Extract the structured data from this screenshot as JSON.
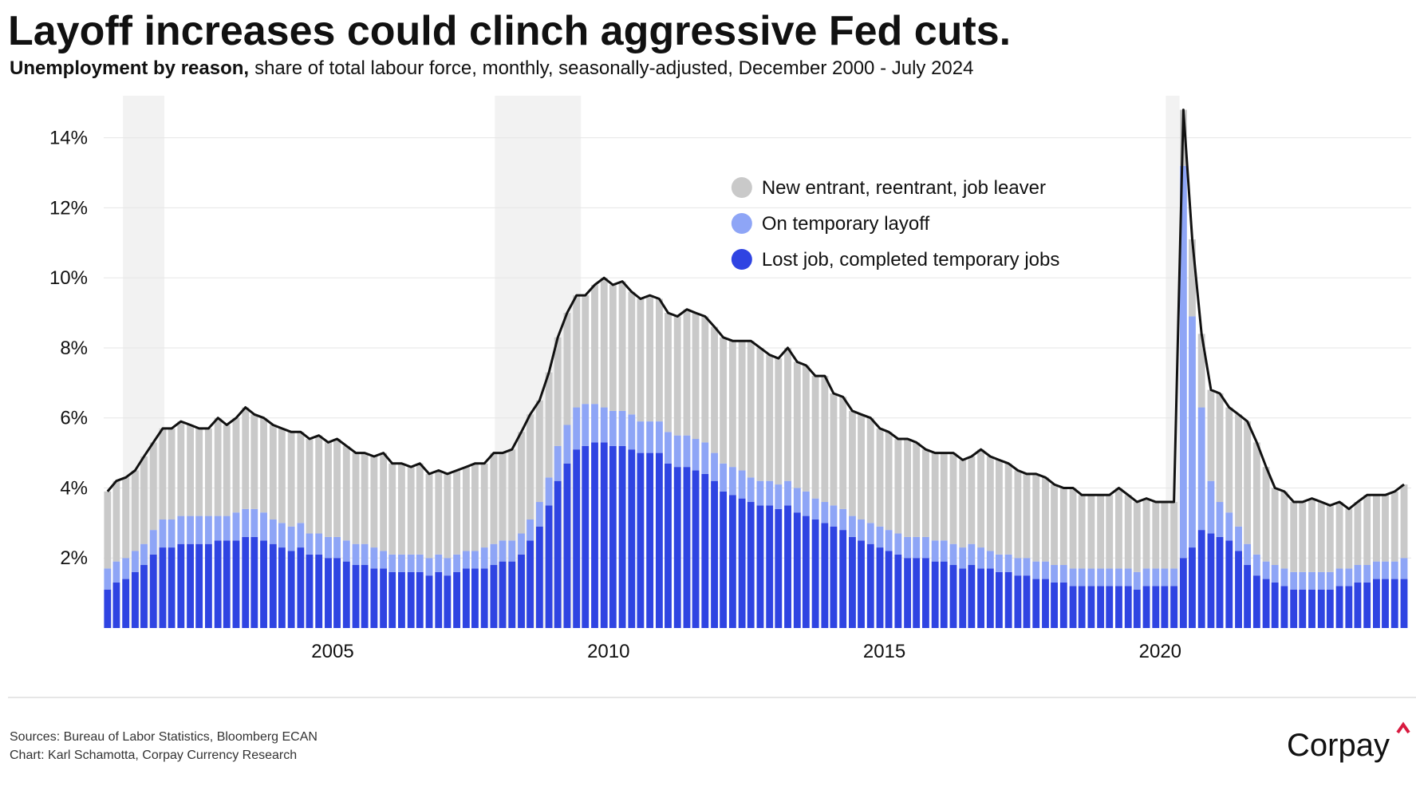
{
  "chart_data": {
    "type": "stacked_bar",
    "title": "Layoff increases could clinch aggressive Fed cuts.",
    "subtitle_bold": "Unemployment by reason,",
    "subtitle": "share of total labour force, monthly, seasonally-adjusted, December 2000 - July 2024",
    "x": [
      2000.92,
      2001.08,
      2001.25,
      2001.42,
      2001.58,
      2001.75,
      2001.92,
      2002.08,
      2002.25,
      2002.42,
      2002.58,
      2002.75,
      2002.92,
      2003.08,
      2003.25,
      2003.42,
      2003.58,
      2003.75,
      2003.92,
      2004.08,
      2004.25,
      2004.42,
      2004.58,
      2004.75,
      2004.92,
      2005.08,
      2005.25,
      2005.42,
      2005.58,
      2005.75,
      2005.92,
      2006.08,
      2006.25,
      2006.42,
      2006.58,
      2006.75,
      2006.92,
      2007.08,
      2007.25,
      2007.42,
      2007.58,
      2007.75,
      2007.92,
      2008.08,
      2008.25,
      2008.42,
      2008.58,
      2008.75,
      2008.92,
      2009.08,
      2009.25,
      2009.42,
      2009.58,
      2009.75,
      2009.92,
      2010.08,
      2010.25,
      2010.42,
      2010.58,
      2010.75,
      2010.92,
      2011.08,
      2011.25,
      2011.42,
      2011.58,
      2011.75,
      2011.92,
      2012.08,
      2012.25,
      2012.42,
      2012.58,
      2012.75,
      2012.92,
      2013.08,
      2013.25,
      2013.42,
      2013.58,
      2013.75,
      2013.92,
      2014.08,
      2014.25,
      2014.42,
      2014.58,
      2014.75,
      2014.92,
      2015.08,
      2015.25,
      2015.42,
      2015.58,
      2015.75,
      2015.92,
      2016.08,
      2016.25,
      2016.42,
      2016.58,
      2016.75,
      2016.92,
      2017.08,
      2017.25,
      2017.42,
      2017.58,
      2017.75,
      2017.92,
      2018.08,
      2018.25,
      2018.42,
      2018.58,
      2018.75,
      2018.92,
      2019.08,
      2019.25,
      2019.42,
      2019.58,
      2019.75,
      2019.92,
      2020.08,
      2020.25,
      2020.42,
      2020.58,
      2020.75,
      2020.92,
      2021.08,
      2021.25,
      2021.42,
      2021.58,
      2021.75,
      2021.92,
      2022.08,
      2022.25,
      2022.42,
      2022.58,
      2022.75,
      2022.92,
      2023.08,
      2023.25,
      2023.42,
      2023.58,
      2023.75,
      2023.92,
      2024.08,
      2024.25,
      2024.42
    ],
    "series": [
      {
        "name": "New entrant, reentrant, job leaver",
        "color": "#c9c9c9",
        "values": [
          2.2,
          2.3,
          2.3,
          2.3,
          2.5,
          2.5,
          2.6,
          2.6,
          2.7,
          2.6,
          2.5,
          2.5,
          2.8,
          2.6,
          2.7,
          2.9,
          2.7,
          2.7,
          2.7,
          2.7,
          2.7,
          2.6,
          2.7,
          2.8,
          2.7,
          2.8,
          2.7,
          2.6,
          2.6,
          2.6,
          2.8,
          2.6,
          2.6,
          2.5,
          2.6,
          2.4,
          2.4,
          2.4,
          2.4,
          2.4,
          2.5,
          2.4,
          2.6,
          2.5,
          2.6,
          2.9,
          3.0,
          2.9,
          3.0,
          3.1,
          3.2,
          3.2,
          3.1,
          3.4,
          3.7,
          3.6,
          3.7,
          3.5,
          3.5,
          3.6,
          3.5,
          3.4,
          3.4,
          3.6,
          3.6,
          3.6,
          3.6,
          3.6,
          3.6,
          3.7,
          3.9,
          3.8,
          3.6,
          3.6,
          3.8,
          3.6,
          3.6,
          3.5,
          3.6,
          3.2,
          3.2,
          3.0,
          3.0,
          3.0,
          2.8,
          2.8,
          2.7,
          2.8,
          2.7,
          2.5,
          2.5,
          2.5,
          2.6,
          2.5,
          2.5,
          2.8,
          2.7,
          2.7,
          2.6,
          2.5,
          2.4,
          2.5,
          2.4,
          2.3,
          2.2,
          2.3,
          2.1,
          2.1,
          2.1,
          2.1,
          2.3,
          2.1,
          2.0,
          2.0,
          1.9,
          1.9,
          1.9,
          1.6,
          2.2,
          2.1,
          2.6,
          3.1,
          3.0,
          3.2,
          3.5,
          3.2,
          2.7,
          2.2,
          2.2,
          2.0,
          2.0,
          2.1,
          2.0,
          1.9,
          1.9,
          1.7,
          1.8,
          2.0,
          1.9,
          1.9,
          2.0,
          2.1
        ]
      },
      {
        "name": "On temporary layoff",
        "color": "#8ea5f6",
        "values": [
          0.6,
          0.6,
          0.6,
          0.6,
          0.6,
          0.7,
          0.8,
          0.8,
          0.8,
          0.8,
          0.8,
          0.8,
          0.7,
          0.7,
          0.8,
          0.8,
          0.8,
          0.8,
          0.7,
          0.7,
          0.7,
          0.7,
          0.6,
          0.6,
          0.6,
          0.6,
          0.6,
          0.6,
          0.6,
          0.6,
          0.5,
          0.5,
          0.5,
          0.5,
          0.5,
          0.5,
          0.5,
          0.5,
          0.5,
          0.5,
          0.5,
          0.6,
          0.6,
          0.6,
          0.6,
          0.6,
          0.6,
          0.7,
          0.8,
          1.0,
          1.1,
          1.2,
          1.2,
          1.1,
          1.0,
          1.0,
          1.0,
          1.0,
          0.9,
          0.9,
          0.9,
          0.9,
          0.9,
          0.9,
          0.9,
          0.9,
          0.8,
          0.8,
          0.8,
          0.8,
          0.7,
          0.7,
          0.7,
          0.7,
          0.7,
          0.7,
          0.7,
          0.6,
          0.6,
          0.6,
          0.6,
          0.6,
          0.6,
          0.6,
          0.6,
          0.6,
          0.6,
          0.6,
          0.6,
          0.6,
          0.6,
          0.6,
          0.6,
          0.6,
          0.6,
          0.6,
          0.5,
          0.5,
          0.5,
          0.5,
          0.5,
          0.5,
          0.5,
          0.5,
          0.5,
          0.5,
          0.5,
          0.5,
          0.5,
          0.5,
          0.5,
          0.5,
          0.5,
          0.5,
          0.5,
          0.5,
          0.5,
          11.2,
          6.6,
          3.5,
          1.5,
          1.0,
          0.8,
          0.7,
          0.6,
          0.6,
          0.5,
          0.5,
          0.5,
          0.5,
          0.5,
          0.5,
          0.5,
          0.5,
          0.5,
          0.5,
          0.5,
          0.5,
          0.5,
          0.5,
          0.5,
          0.6
        ]
      },
      {
        "name": "Lost job, completed temporary jobs",
        "color": "#2f44e2",
        "values": [
          1.1,
          1.3,
          1.4,
          1.6,
          1.8,
          2.1,
          2.3,
          2.3,
          2.4,
          2.4,
          2.4,
          2.4,
          2.5,
          2.5,
          2.5,
          2.6,
          2.6,
          2.5,
          2.4,
          2.3,
          2.2,
          2.3,
          2.1,
          2.1,
          2.0,
          2.0,
          1.9,
          1.8,
          1.8,
          1.7,
          1.7,
          1.6,
          1.6,
          1.6,
          1.6,
          1.5,
          1.6,
          1.5,
          1.6,
          1.7,
          1.7,
          1.7,
          1.8,
          1.9,
          1.9,
          2.1,
          2.5,
          2.9,
          3.5,
          4.2,
          4.7,
          5.1,
          5.2,
          5.3,
          5.3,
          5.2,
          5.2,
          5.1,
          5.0,
          5.0,
          5.0,
          4.7,
          4.6,
          4.6,
          4.5,
          4.4,
          4.2,
          3.9,
          3.8,
          3.7,
          3.6,
          3.5,
          3.5,
          3.4,
          3.5,
          3.3,
          3.2,
          3.1,
          3.0,
          2.9,
          2.8,
          2.6,
          2.5,
          2.4,
          2.3,
          2.2,
          2.1,
          2.0,
          2.0,
          2.0,
          1.9,
          1.9,
          1.8,
          1.7,
          1.8,
          1.7,
          1.7,
          1.6,
          1.6,
          1.5,
          1.5,
          1.4,
          1.4,
          1.3,
          1.3,
          1.2,
          1.2,
          1.2,
          1.2,
          1.2,
          1.2,
          1.2,
          1.1,
          1.2,
          1.2,
          1.2,
          1.2,
          2.0,
          2.3,
          2.8,
          2.7,
          2.6,
          2.5,
          2.2,
          1.8,
          1.5,
          1.4,
          1.3,
          1.2,
          1.1,
          1.1,
          1.1,
          1.1,
          1.1,
          1.2,
          1.2,
          1.3,
          1.3,
          1.4,
          1.4,
          1.4,
          1.4
        ]
      }
    ],
    "line_color": "#111111",
    "shaded_periods": [
      [
        2001.2,
        2001.95
      ],
      [
        2007.94,
        2009.5
      ],
      [
        2020.1,
        2020.35
      ]
    ],
    "xlim": [
      2000.85,
      2024.55
    ],
    "xticks": [
      2005,
      2010,
      2015,
      2020
    ],
    "ylim": [
      0,
      15.2
    ],
    "yticks": [
      {
        "value": 2,
        "label": "2%"
      },
      {
        "value": 4,
        "label": "4%"
      },
      {
        "value": 6,
        "label": "6%"
      },
      {
        "value": 8,
        "label": "8%"
      },
      {
        "value": 10,
        "label": "10%"
      },
      {
        "value": 12,
        "label": "12%"
      },
      {
        "value": 14,
        "label": "14%"
      }
    ],
    "grid": true,
    "legend": "upper center"
  },
  "footer": {
    "sources": "Sources: Bureau of Labor Statistics, Bloomberg ECAN",
    "credit": "Chart: Karl Schamotta, Corpay Currency Research",
    "logo": "Corpay"
  }
}
